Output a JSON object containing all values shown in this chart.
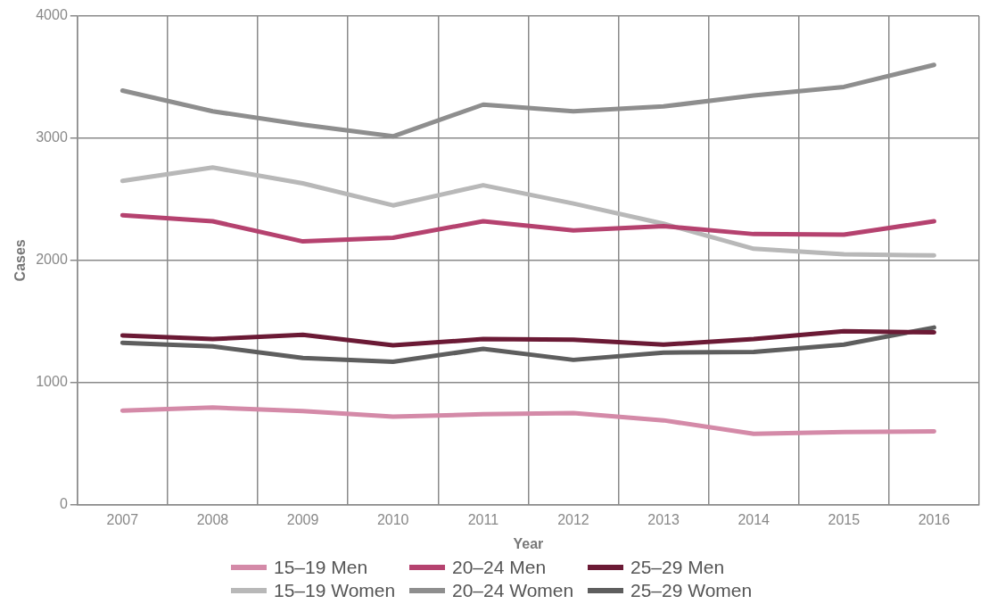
{
  "chart_data": {
    "type": "line",
    "xlabel": "Year",
    "ylabel": "Cases",
    "categories": [
      "2007",
      "2008",
      "2009",
      "2010",
      "2011",
      "2012",
      "2013",
      "2014",
      "2015",
      "2016"
    ],
    "ylim": [
      0,
      4000
    ],
    "yticks": [
      0,
      1000,
      2000,
      3000,
      4000
    ],
    "grid": true,
    "legend": "bottom",
    "marker": "none",
    "line_style": "solid",
    "series": [
      {
        "name": "15–19 Men",
        "color": "#d48aa8",
        "values": [
          770,
          795,
          765,
          720,
          740,
          750,
          690,
          580,
          595,
          600
        ]
      },
      {
        "name": "20–24 Men",
        "color": "#b5426f",
        "values": [
          2370,
          2320,
          2155,
          2185,
          2320,
          2245,
          2280,
          2215,
          2210,
          2320
        ]
      },
      {
        "name": "25–29 Men",
        "color": "#6b1a35",
        "values": [
          1385,
          1355,
          1390,
          1305,
          1355,
          1350,
          1310,
          1355,
          1420,
          1410
        ]
      },
      {
        "name": "15–19 Women",
        "color": "#b8b8b8",
        "values": [
          2650,
          2760,
          2630,
          2450,
          2615,
          2465,
          2300,
          2095,
          2050,
          2040
        ]
      },
      {
        "name": "20–24 Women",
        "color": "#8e8e8e",
        "values": [
          3390,
          3220,
          3110,
          3015,
          3275,
          3220,
          3260,
          3350,
          3420,
          3600
        ]
      },
      {
        "name": "25–29 Women",
        "color": "#5e5e5e",
        "values": [
          1325,
          1295,
          1200,
          1170,
          1275,
          1185,
          1245,
          1250,
          1310,
          1450
        ]
      }
    ]
  }
}
